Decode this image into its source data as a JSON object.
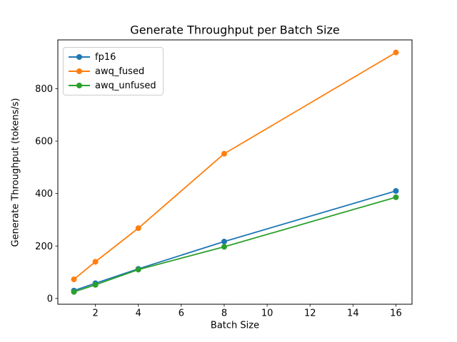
{
  "chart_data": {
    "type": "line",
    "title": "Generate Throughput per Batch Size",
    "xlabel": "Batch Size",
    "ylabel": "Generate Throughput (tokens/s)",
    "x": [
      1,
      2,
      4,
      8,
      16
    ],
    "series": [
      {
        "name": "fp16",
        "color": "#1f77b4",
        "marker": "o",
        "values": [
          30,
          58,
          113,
          217,
          410
        ]
      },
      {
        "name": "awq_fused",
        "color": "#ff7f0e",
        "marker": "o",
        "values": [
          73,
          140,
          268,
          552,
          938
        ]
      },
      {
        "name": "awq_unfused",
        "color": "#2ca02c",
        "marker": "o",
        "values": [
          25,
          52,
          110,
          197,
          386
        ]
      }
    ],
    "xticks": [
      2,
      4,
      6,
      8,
      10,
      12,
      14,
      16
    ],
    "yticks": [
      0,
      200,
      400,
      600,
      800
    ],
    "xlim": [
      0.25,
      16.75
    ],
    "ylim": [
      -22,
      986
    ],
    "grid": false,
    "legend": {
      "position": "upper left",
      "entries": [
        "fp16",
        "awq_fused",
        "awq_unfused"
      ]
    },
    "colors": {
      "background": "#ffffff",
      "spine": "#000000",
      "text": "#000000",
      "legend_border": "#cccccc"
    }
  }
}
